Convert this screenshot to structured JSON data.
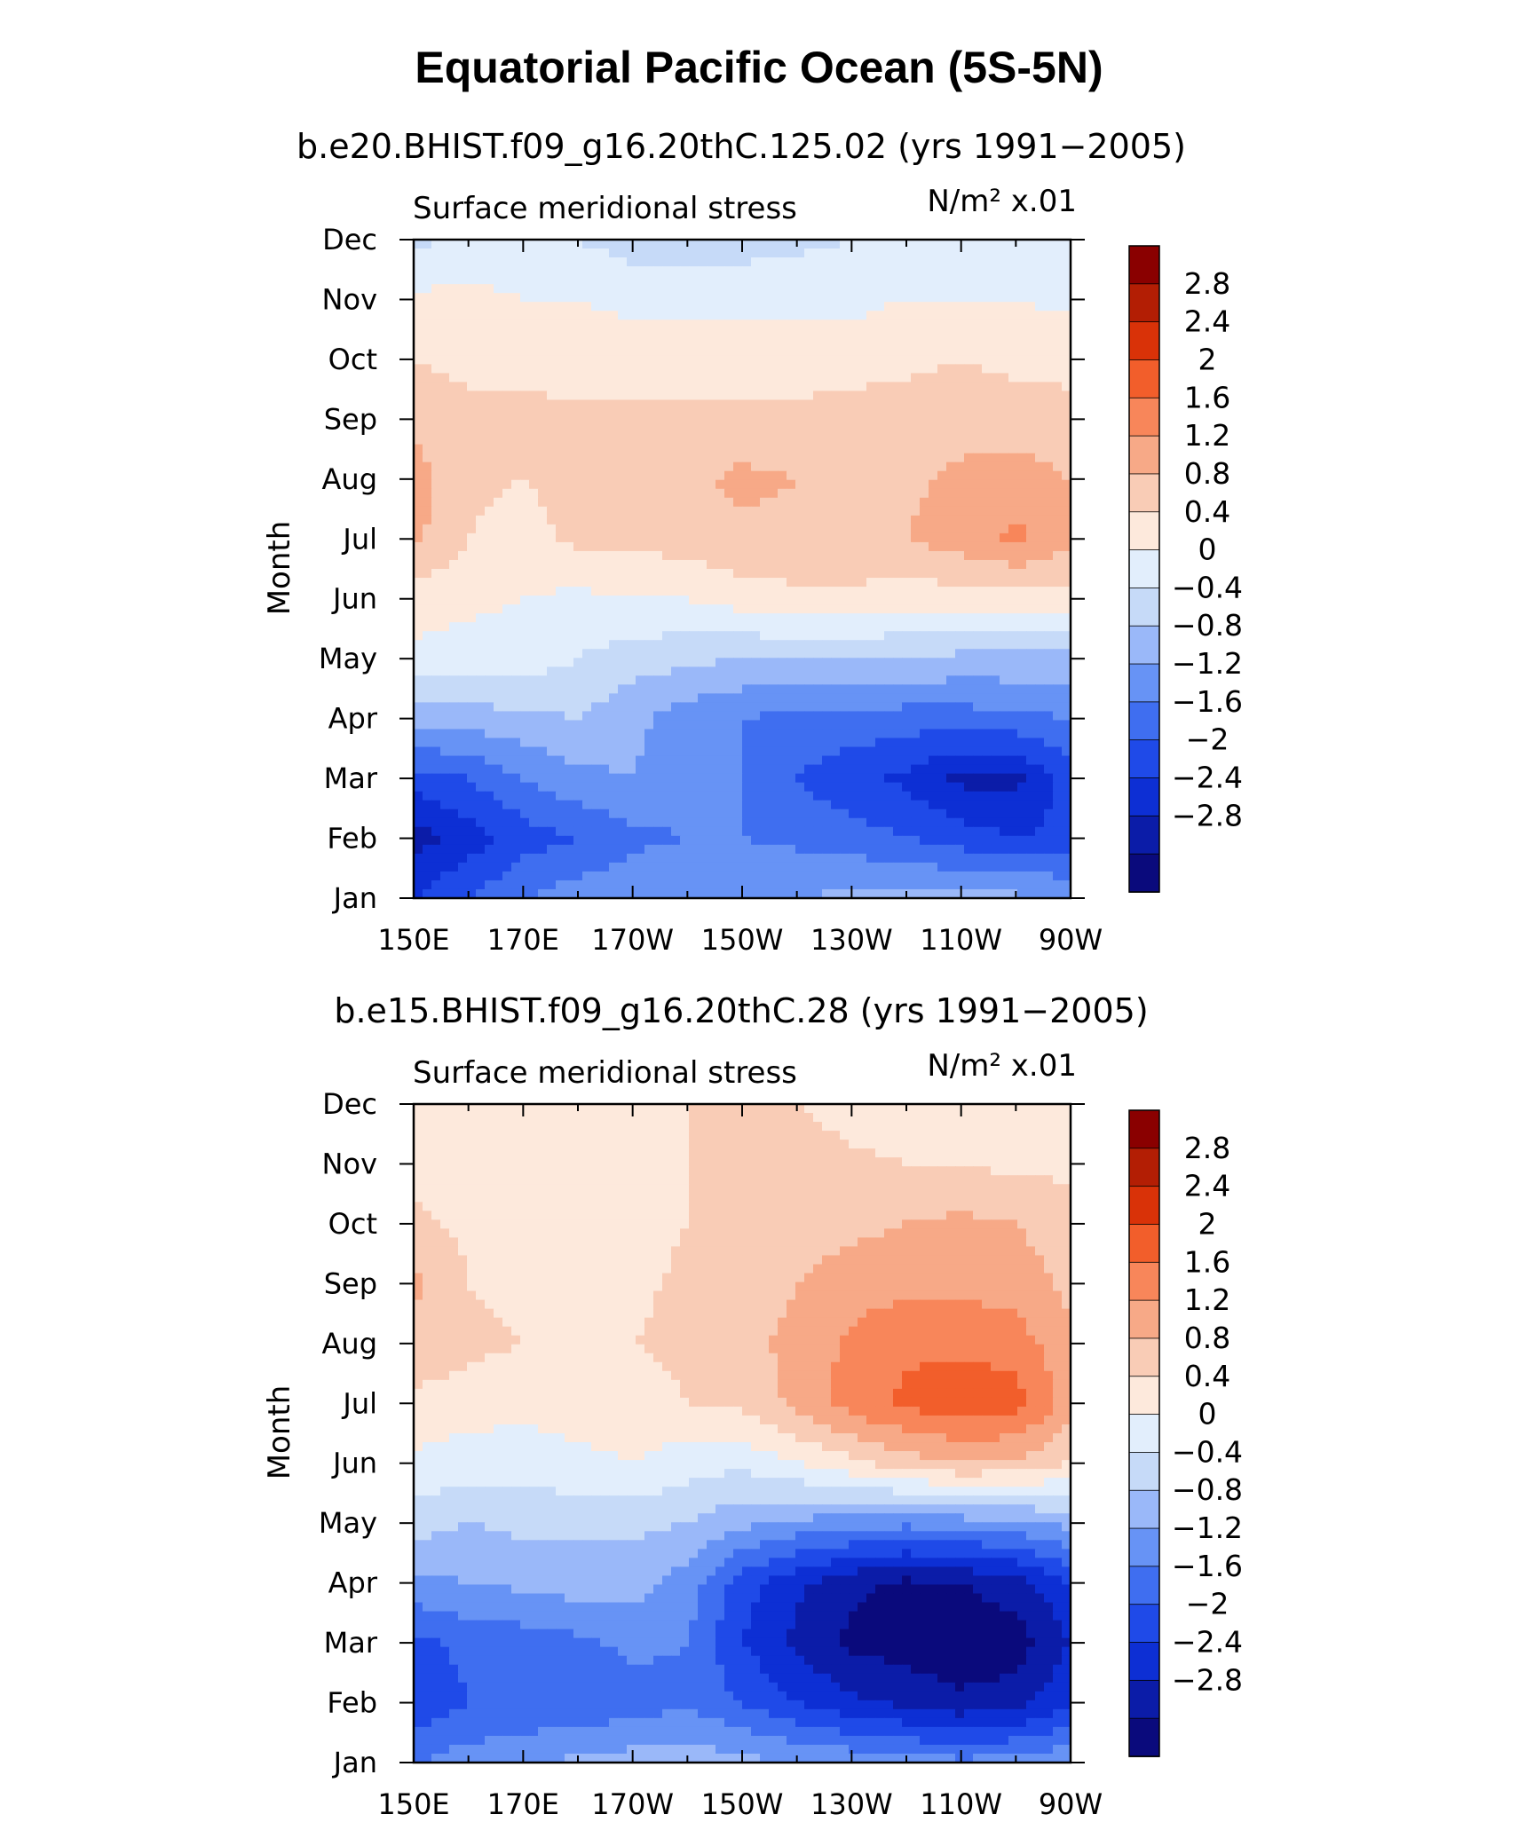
{
  "title": "Equatorial Pacific Ocean (5S-5N)",
  "colors": {
    "levels": [
      "#0a0a7c",
      "#0b1ca8",
      "#0d2fd4",
      "#1f4ae8",
      "#3f6ef0",
      "#6793f5",
      "#9ab8f9",
      "#c6daf8",
      "#e2eefc",
      "#fde9dc",
      "#f9ccb6",
      "#f7a987",
      "#f8865a",
      "#f25e2b",
      "#d93208",
      "#b31e04",
      "#8a0000"
    ],
    "axis": "#000000"
  },
  "chart_data": [
    {
      "type": "heatmap",
      "subtitle": "b.e20.BHIST.f09_g16.20thC.125.02 (yrs 1991−2005)",
      "left_label": "Surface meridional stress",
      "units": "N/m² x.01",
      "ylabel": "Month",
      "xlabel": "",
      "x": [
        "150E",
        "170E",
        "170W",
        "150W",
        "130W",
        "110W",
        "90W"
      ],
      "xlim": [
        150,
        270
      ],
      "y": [
        "Jan",
        "Feb",
        "Mar",
        "Apr",
        "May",
        "Jun",
        "Jul",
        "Aug",
        "Sep",
        "Oct",
        "Nov",
        "Dec"
      ],
      "colorbar_labels": [
        "2.8",
        "2.4",
        "2",
        "1.6",
        "1.2",
        "0.8",
        "0.4",
        "0",
        "−0.4",
        "−0.8",
        "−1.2",
        "−1.6",
        "−2",
        "−2.4",
        "−2.8"
      ],
      "levels": [
        -3.2,
        -2.8,
        -2.4,
        -2,
        -1.6,
        -1.2,
        -0.8,
        -0.4,
        0,
        0.4,
        0.8,
        1.2,
        1.6,
        2,
        2.4,
        2.8,
        3.2
      ],
      "grid_lon": [
        150,
        160,
        170,
        180,
        190,
        200,
        210,
        220,
        230,
        240,
        250,
        260,
        270
      ],
      "values": [
        [
          -2.0,
          -1.6,
          -1.2,
          -1.0,
          -0.9,
          -0.8,
          -0.8,
          -0.8,
          -0.7,
          -0.6,
          -0.7,
          -0.7,
          -0.8
        ],
        [
          -2.6,
          -2.2,
          -1.8,
          -1.6,
          -1.3,
          -1.2,
          -1.2,
          -1.3,
          -1.4,
          -1.6,
          -1.8,
          -2.0,
          -1.9
        ],
        [
          -1.8,
          -1.6,
          -1.2,
          -0.9,
          -0.8,
          -1.0,
          -1.2,
          -1.6,
          -1.9,
          -2.1,
          -2.5,
          -2.5,
          -1.8
        ],
        [
          -0.6,
          -0.6,
          -0.5,
          -0.4,
          -0.7,
          -1.0,
          -1.2,
          -1.3,
          -1.3,
          -1.4,
          -1.4,
          -1.3,
          -1.2
        ],
        [
          0.3,
          0.2,
          0.2,
          0.0,
          -0.2,
          -0.3,
          -0.4,
          -0.4,
          -0.4,
          -0.4,
          -0.5,
          -0.5,
          -0.5
        ],
        [
          0.6,
          0.5,
          0.4,
          0.3,
          0.4,
          0.4,
          0.6,
          0.7,
          0.7,
          0.6,
          0.6,
          0.6,
          0.6
        ],
        [
          1.3,
          0.8,
          0.6,
          0.9,
          0.9,
          1.0,
          1.1,
          1.1,
          1.1,
          1.2,
          1.4,
          1.7,
          1.3
        ],
        [
          1.4,
          0.9,
          0.8,
          1.0,
          1.0,
          1.1,
          1.3,
          1.2,
          1.1,
          1.1,
          1.3,
          1.4,
          1.2
        ],
        [
          1.1,
          0.9,
          0.9,
          0.9,
          0.9,
          0.9,
          0.9,
          0.9,
          1.0,
          1.0,
          1.0,
          1.0,
          0.9
        ],
        [
          0.8,
          0.7,
          0.7,
          0.6,
          0.6,
          0.6,
          0.6,
          0.6,
          0.6,
          0.7,
          0.8,
          0.7,
          0.7
        ],
        [
          0.5,
          0.5,
          0.4,
          0.4,
          0.3,
          0.3,
          0.3,
          0.3,
          0.3,
          0.4,
          0.4,
          0.4,
          0.3
        ],
        [
          -0.1,
          0.1,
          0.2,
          0.0,
          -0.2,
          -0.2,
          -0.2,
          -0.1,
          0.0,
          0.1,
          0.2,
          0.2,
          0.2
        ]
      ]
    },
    {
      "type": "heatmap",
      "subtitle": "b.e15.BHIST.f09_g16.20thC.28 (yrs 1991−2005)",
      "left_label": "Surface meridional stress",
      "units": "N/m² x.01",
      "ylabel": "Month",
      "xlabel": "",
      "x": [
        "150E",
        "170E",
        "170W",
        "150W",
        "130W",
        "110W",
        "90W"
      ],
      "xlim": [
        150,
        270
      ],
      "y": [
        "Jan",
        "Feb",
        "Mar",
        "Apr",
        "May",
        "Jun",
        "Jul",
        "Aug",
        "Sep",
        "Oct",
        "Nov",
        "Dec"
      ],
      "colorbar_labels": [
        "2.8",
        "2.4",
        "2",
        "1.6",
        "1.2",
        "0.8",
        "0.4",
        "0",
        "−0.4",
        "−0.8",
        "−1.2",
        "−1.6",
        "−2",
        "−2.4",
        "−2.8"
      ],
      "levels": [
        -3.2,
        -2.8,
        -2.4,
        -2,
        -1.6,
        -1.2,
        -0.8,
        -0.4,
        0,
        0.4,
        0.8,
        1.2,
        1.6,
        2,
        2.4,
        2.8,
        3.2
      ],
      "grid_lon": [
        150,
        160,
        170,
        180,
        190,
        200,
        210,
        220,
        230,
        240,
        250,
        260,
        270
      ],
      "values": [
        [
          -1.2,
          -1.0,
          -0.9,
          -0.7,
          -0.6,
          -0.5,
          -0.7,
          -0.8,
          -0.9,
          -1.0,
          -1.1,
          -1.0,
          -0.9
        ],
        [
          -2.0,
          -1.6,
          -1.5,
          -1.6,
          -1.4,
          -1.3,
          -1.6,
          -2.0,
          -2.3,
          -2.5,
          -2.7,
          -2.6,
          -2.0
        ],
        [
          -1.7,
          -1.5,
          -1.4,
          -1.3,
          -1.1,
          -1.2,
          -2.0,
          -2.5,
          -2.9,
          -3.0,
          -3.1,
          -3.0,
          -2.4
        ],
        [
          -0.9,
          -0.8,
          -0.7,
          -0.6,
          -0.6,
          -1.0,
          -1.8,
          -2.3,
          -2.7,
          -2.9,
          -2.8,
          -2.6,
          -2.0
        ],
        [
          -0.2,
          -0.4,
          -0.3,
          -0.3,
          -0.3,
          -0.4,
          -0.7,
          -0.9,
          -1.0,
          -1.1,
          -1.0,
          -0.9,
          -0.7
        ],
        [
          0.3,
          0.2,
          0.2,
          0.3,
          0.4,
          0.2,
          0.1,
          0.4,
          0.7,
          1.0,
          1.2,
          1.1,
          0.8
        ],
        [
          0.7,
          0.6,
          0.5,
          0.6,
          0.6,
          0.8,
          0.9,
          1.3,
          1.8,
          2.1,
          2.3,
          2.2,
          1.4
        ],
        [
          1.1,
          0.9,
          0.8,
          0.8,
          0.8,
          0.9,
          1.1,
          1.3,
          1.7,
          1.9,
          1.9,
          1.8,
          1.3
        ],
        [
          1.3,
          0.8,
          0.7,
          0.7,
          0.7,
          0.9,
          1.0,
          1.2,
          1.4,
          1.5,
          1.5,
          1.4,
          1.1
        ],
        [
          0.9,
          0.7,
          0.6,
          0.6,
          0.6,
          0.8,
          0.9,
          1.0,
          1.1,
          1.2,
          1.3,
          1.2,
          1.0
        ],
        [
          0.6,
          0.6,
          0.5,
          0.5,
          0.6,
          0.8,
          0.9,
          1.0,
          0.9,
          0.8,
          0.8,
          0.7,
          0.7
        ],
        [
          0.4,
          0.5,
          0.5,
          0.5,
          0.6,
          0.8,
          0.9,
          0.8,
          0.6,
          0.5,
          0.4,
          0.4,
          0.4
        ]
      ]
    }
  ]
}
